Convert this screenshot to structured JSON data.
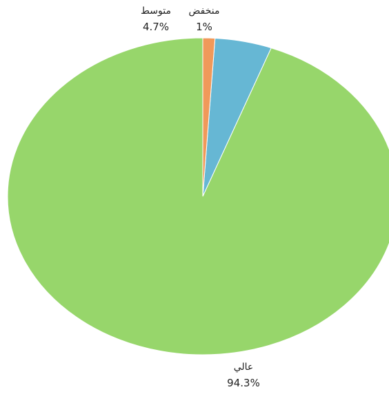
{
  "chart_data": {
    "type": "pie",
    "title": "",
    "start_angle_deg": 0,
    "direction": "counterclockwise",
    "slices": [
      {
        "label": "عالي",
        "value": 94.3,
        "percent_label": "94.3%",
        "color": "#97d66b"
      },
      {
        "label": "متوسط",
        "value": 4.7,
        "percent_label": "4.7%",
        "color": "#66b7d4"
      },
      {
        "label": "منخفض",
        "value": 1.0,
        "percent_label": "1%",
        "color": "#f0995a"
      }
    ]
  }
}
